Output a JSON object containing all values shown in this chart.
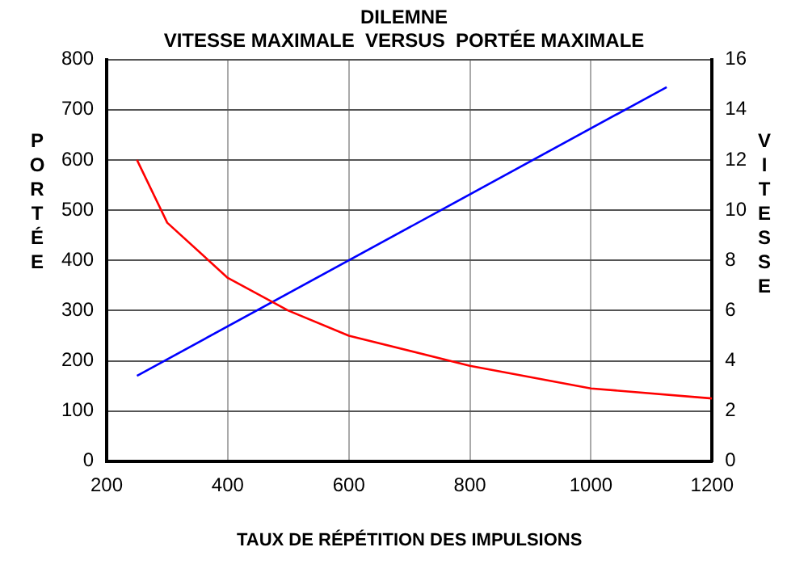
{
  "chart_data": {
    "type": "line",
    "title": "DILEMNE",
    "subtitle": "VITESSE MAXIMALE  VERSUS  PORTÉE MAXIMALE",
    "xlabel": "TAUX DE RÉPÉTITION DES IMPULSIONS",
    "ylabel": "PORTÉE",
    "y2label": "VITESSE",
    "xlim": [
      200,
      1200
    ],
    "xticks": [
      200,
      400,
      600,
      800,
      1000,
      1200
    ],
    "ylim": [
      0,
      800
    ],
    "yticks": [
      0,
      100,
      200,
      300,
      400,
      500,
      600,
      700,
      800
    ],
    "y2lim": [
      0,
      16
    ],
    "y2ticks": [
      0,
      2,
      4,
      6,
      8,
      10,
      12,
      14,
      16
    ],
    "grid": true,
    "legend": false,
    "marker": "none",
    "line_style": "solid",
    "series": [
      {
        "color": "#ff0000",
        "x": [
          250,
          300,
          400,
          500,
          600,
          800,
          1000,
          1200
        ],
        "values": [
          600,
          475,
          365,
          300,
          250,
          190,
          145,
          125
        ]
      },
      {
        "color": "#0000ff",
        "axis": "y2",
        "x": [
          250,
          1125
        ],
        "values": [
          3.4,
          14.9
        ]
      }
    ]
  }
}
